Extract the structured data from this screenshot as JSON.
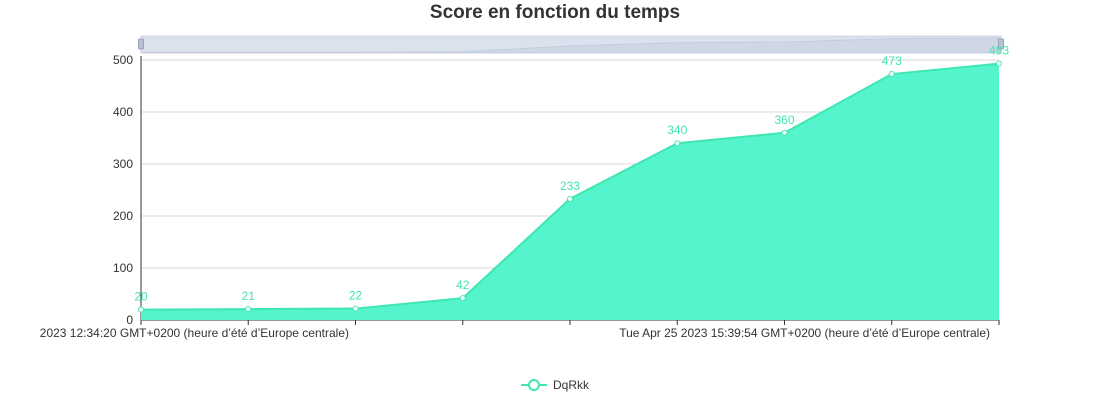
{
  "chart_data": {
    "type": "area",
    "title": "Score en fonction du temps",
    "xlabel": "",
    "ylabel": "",
    "ylim": [
      0,
      500
    ],
    "y_ticks": [
      0,
      100,
      200,
      300,
      400,
      500
    ],
    "x_tick_labels": [
      "2023 12:34:20 GMT+0200 (heure d’été d’Europe centrale)",
      "Tue Apr 25 2023 15:39:54 GMT+0200 (heure d’été d’Europe centrale)"
    ],
    "grid": true,
    "legend_position": "bottom-center",
    "series": [
      {
        "name": "DqRkk",
        "color": "#3fe6b0",
        "fill": "#54f5cd",
        "values": [
          20,
          21,
          22,
          42,
          233,
          340,
          360,
          473,
          493
        ]
      }
    ]
  },
  "data_zoom": {
    "range": [
      0,
      100
    ]
  }
}
